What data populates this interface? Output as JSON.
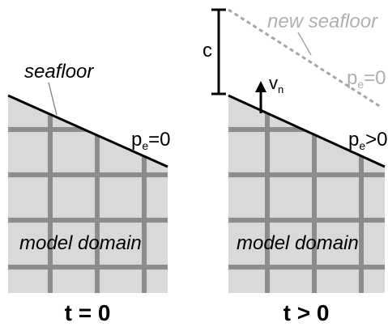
{
  "left_panel": {
    "seafloor_label": "seafloor",
    "pressure_symbol": "p",
    "pressure_subscript": "e",
    "pressure_relation": "=0",
    "domain_label": "model domain",
    "time_label": "t = 0"
  },
  "right_panel": {
    "new_seafloor_label": "new seafloor",
    "new_pressure_symbol": "p",
    "new_pressure_subscript": "e",
    "new_pressure_relation": "=0",
    "c_label": "c",
    "velocity_symbol": "v",
    "velocity_subscript": "n",
    "pressure_symbol": "p",
    "pressure_subscript": "e",
    "pressure_relation": ">0",
    "domain_label": "model domain",
    "time_label": "t > 0"
  },
  "colors": {
    "domain_fill": "#d9d9d9",
    "grid_lines": "#8c8c8c",
    "boundary": "#000000",
    "new_seafloor": "#a6a6a6",
    "annotation_text": "#000000",
    "faded_text": "#b0b0b0"
  }
}
